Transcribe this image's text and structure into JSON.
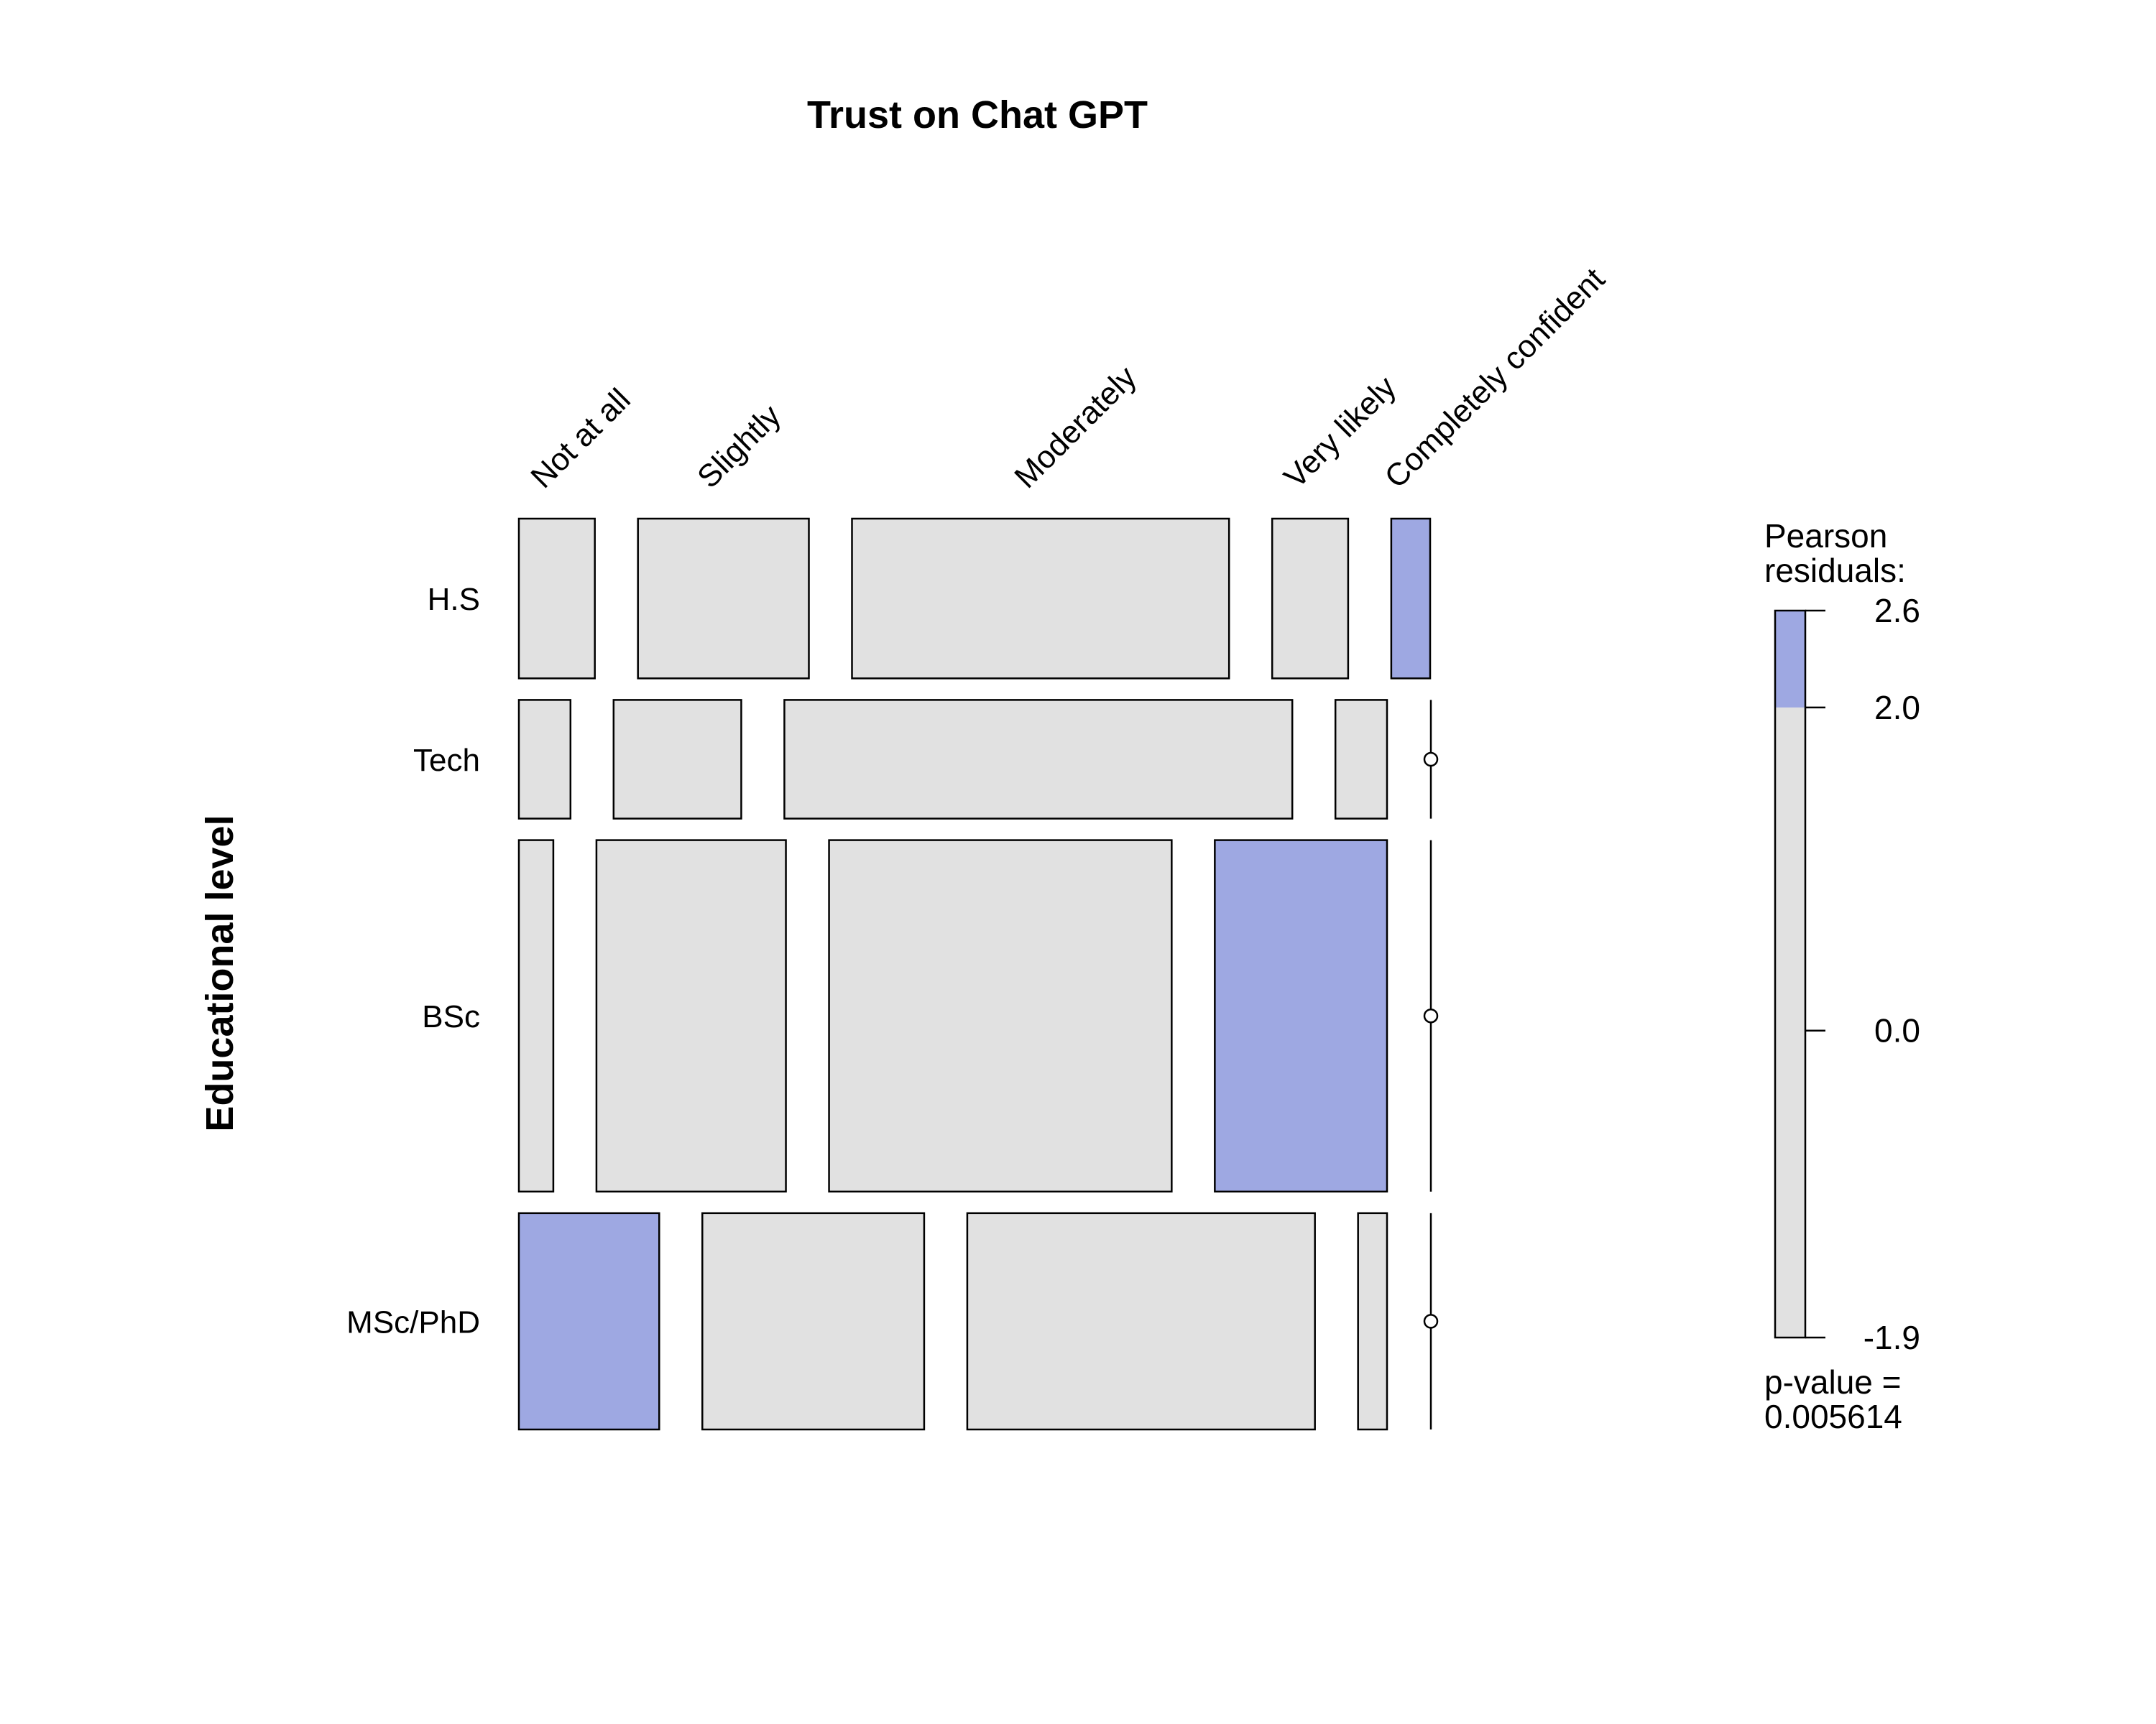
{
  "chart_data": {
    "type": "mosaic",
    "title": "Trust on Chat GPT",
    "ylabel": "Educational level",
    "columns": [
      "Not at all",
      "Slightly",
      "Moderately",
      "Very likely",
      "Completely confident"
    ],
    "rows": [
      "H.S",
      "Tech",
      "BSc",
      "MSc/PhD"
    ],
    "row_proportions": [
      0.175,
      0.13,
      0.385,
      0.237
    ],
    "cell_shares": [
      [
        0.084,
        0.189,
        0.417,
        0.084,
        0.043
      ],
      [
        0.057,
        0.141,
        0.561,
        0.057,
        0.0
      ],
      [
        0.038,
        0.209,
        0.378,
        0.19,
        0.0
      ],
      [
        0.155,
        0.245,
        0.384,
        0.032,
        0.0
      ]
    ],
    "residual_shading": [
      [
        "none",
        "none",
        "none",
        "none",
        "positive"
      ],
      [
        "none",
        "none",
        "none",
        "none",
        "none"
      ],
      [
        "none",
        "none",
        "none",
        "positive",
        "none"
      ],
      [
        "positive",
        "none",
        "none",
        "none",
        "none"
      ]
    ],
    "colors": {
      "neutral": "#e1e1e1",
      "positive": "#9ea8e2"
    },
    "legend": {
      "title_line1": "Pearson",
      "title_line2": "residuals:",
      "ticks": [
        2.6,
        2.0,
        0.0,
        -1.9
      ],
      "tick_labels": [
        "2.6",
        "2.0",
        "0.0",
        "-1.9"
      ],
      "range": [
        -1.9,
        2.6
      ],
      "shade_threshold": 2.0,
      "pvalue_line1": "p-value =",
      "pvalue_line2": "0.005614"
    }
  }
}
